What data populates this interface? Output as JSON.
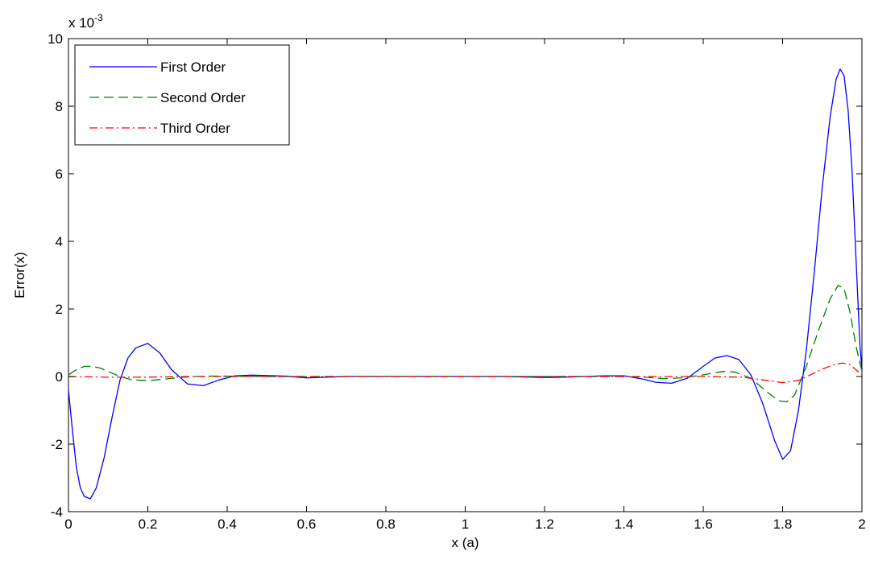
{
  "chart_data": {
    "type": "line",
    "title": "",
    "xlabel": "x (a)",
    "ylabel": "Error(x)",
    "y_multiplier_base": "x 10",
    "y_multiplier_exp": "-3",
    "xlim": [
      0,
      2
    ],
    "ylim": [
      -4,
      10
    ],
    "x_ticks": [
      0,
      0.2,
      0.4,
      0.6,
      0.8,
      1,
      1.2,
      1.4,
      1.6,
      1.8,
      2
    ],
    "x_tick_labels": [
      "0",
      "0.2",
      "0.4",
      "0.6",
      "0.8",
      "1",
      "1.2",
      "1.4",
      "1.6",
      "1.8",
      "2"
    ],
    "y_ticks": [
      -4,
      -2,
      0,
      2,
      4,
      6,
      8,
      10
    ],
    "y_tick_labels": [
      "-4",
      "-2",
      "0",
      "2",
      "4",
      "6",
      "8",
      "10"
    ],
    "grid": false,
    "legend_position": "top-left",
    "series": [
      {
        "name": "First Order",
        "color": "#0000ff",
        "dash": "solid",
        "x": [
          0,
          0.01,
          0.02,
          0.03,
          0.04,
          0.055,
          0.07,
          0.09,
          0.11,
          0.13,
          0.15,
          0.17,
          0.2,
          0.23,
          0.26,
          0.3,
          0.34,
          0.38,
          0.42,
          0.46,
          0.5,
          0.55,
          0.6,
          0.65,
          0.7,
          0.8,
          0.9,
          1.0,
          1.1,
          1.2,
          1.25,
          1.3,
          1.35,
          1.4,
          1.45,
          1.48,
          1.52,
          1.56,
          1.6,
          1.63,
          1.66,
          1.69,
          1.72,
          1.75,
          1.78,
          1.8,
          1.82,
          1.84,
          1.86,
          1.88,
          1.9,
          1.92,
          1.935,
          1.945,
          1.955,
          1.965,
          1.975,
          1.985,
          1.995,
          2.0
        ],
        "y": [
          -0.4,
          -1.6,
          -2.7,
          -3.3,
          -3.55,
          -3.62,
          -3.3,
          -2.4,
          -1.2,
          -0.1,
          0.55,
          0.85,
          0.98,
          0.7,
          0.2,
          -0.22,
          -0.27,
          -0.1,
          0.02,
          0.04,
          0.03,
          0.01,
          -0.04,
          -0.02,
          0.0,
          0.0,
          0.0,
          0.0,
          0.0,
          -0.03,
          -0.02,
          0.0,
          0.02,
          0.02,
          -0.08,
          -0.17,
          -0.2,
          -0.05,
          0.3,
          0.55,
          0.62,
          0.5,
          0.05,
          -0.8,
          -1.9,
          -2.45,
          -2.2,
          -1.0,
          0.8,
          3.1,
          5.6,
          7.7,
          8.8,
          9.1,
          8.9,
          7.9,
          6.1,
          3.5,
          0.9,
          0.2
        ]
      },
      {
        "name": "Second Order",
        "color": "#008000",
        "dash": "dashed",
        "x": [
          0,
          0.02,
          0.04,
          0.06,
          0.08,
          0.1,
          0.13,
          0.16,
          0.2,
          0.24,
          0.28,
          0.32,
          0.36,
          0.4,
          0.5,
          0.6,
          0.8,
          1.0,
          1.2,
          1.4,
          1.45,
          1.5,
          1.55,
          1.6,
          1.65,
          1.68,
          1.72,
          1.76,
          1.79,
          1.81,
          1.83,
          1.86,
          1.89,
          1.92,
          1.94,
          1.955,
          1.97,
          1.985,
          2.0
        ],
        "y": [
          0.05,
          0.2,
          0.3,
          0.3,
          0.25,
          0.15,
          0.0,
          -0.1,
          -0.12,
          -0.08,
          -0.03,
          0.0,
          0.01,
          0.01,
          0.0,
          0.0,
          0.0,
          0.0,
          0.0,
          0.0,
          -0.02,
          -0.06,
          -0.04,
          0.05,
          0.15,
          0.13,
          -0.05,
          -0.45,
          -0.72,
          -0.75,
          -0.55,
          0.3,
          1.35,
          2.3,
          2.7,
          2.6,
          1.9,
          0.9,
          0.15
        ]
      },
      {
        "name": "Third Order",
        "color": "#ff0000",
        "dash": "dashdot",
        "x": [
          0,
          0.1,
          0.2,
          0.3,
          0.5,
          0.8,
          1.0,
          1.2,
          1.4,
          1.6,
          1.7,
          1.75,
          1.8,
          1.84,
          1.87,
          1.9,
          1.93,
          1.95,
          1.97,
          1.99,
          2.0
        ],
        "y": [
          0.0,
          -0.02,
          -0.02,
          0.0,
          0.0,
          0.0,
          0.0,
          0.0,
          0.0,
          0.0,
          -0.02,
          -0.1,
          -0.18,
          -0.12,
          0.05,
          0.22,
          0.35,
          0.4,
          0.35,
          0.15,
          0.05
        ]
      }
    ]
  }
}
